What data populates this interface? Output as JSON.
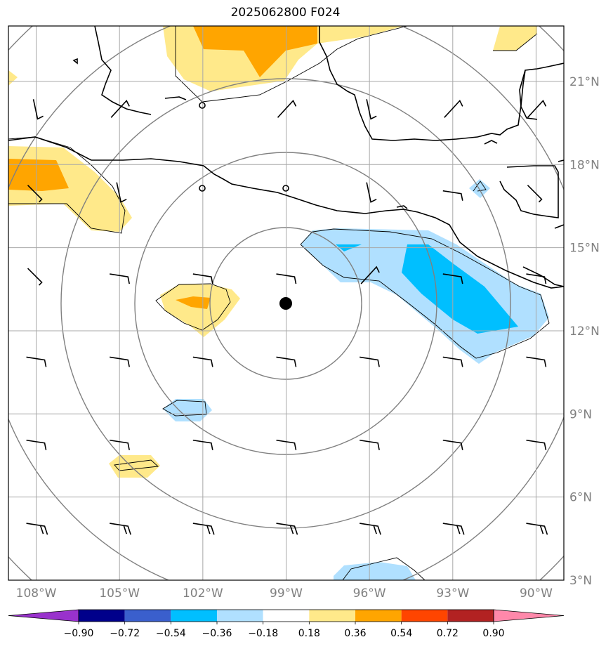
{
  "title": "2025062800 F024",
  "lon_labels": [
    "108°W",
    "105°W",
    "102°W",
    "99°W",
    "96°W",
    "93°W",
    "90°W"
  ],
  "lon_values": [
    -108,
    -105,
    -102,
    -99,
    -96,
    -93,
    -90
  ],
  "lat_labels": [
    "21°N",
    "18°N",
    "15°N",
    "12°N",
    "9°N",
    "6°N",
    "3°N"
  ],
  "lat_values": [
    21,
    18,
    15,
    12,
    9,
    6,
    3
  ],
  "extent": {
    "lon_min": -109,
    "lon_max": -89,
    "lat_min": 3,
    "lat_max": 23
  },
  "center_marker": {
    "lon": -99,
    "lat": 12.8,
    "label": ""
  },
  "range_rings": {
    "center_lon": -99,
    "center_lat": 12.8,
    "count": 5
  },
  "colorbar": {
    "levels": [
      "−0.90",
      "−0.72",
      "−0.54",
      "−0.36",
      "−0.18",
      "0.18",
      "0.36",
      "0.54",
      "0.72",
      "0.90"
    ],
    "colors": [
      "#9932cc",
      "#00008b",
      "#3a5fcd",
      "#00bfff",
      "#b0e0ff",
      "#ffffff",
      "#ffe98a",
      "#ffa500",
      "#ff4500",
      "#b22222",
      "#ff88aa"
    ]
  },
  "shading_colors": {
    "light_yellow": "#ffe98a",
    "orange": "#ffa500",
    "light_blue": "#b0e0ff",
    "deep_sky_blue": "#00bfff"
  }
}
